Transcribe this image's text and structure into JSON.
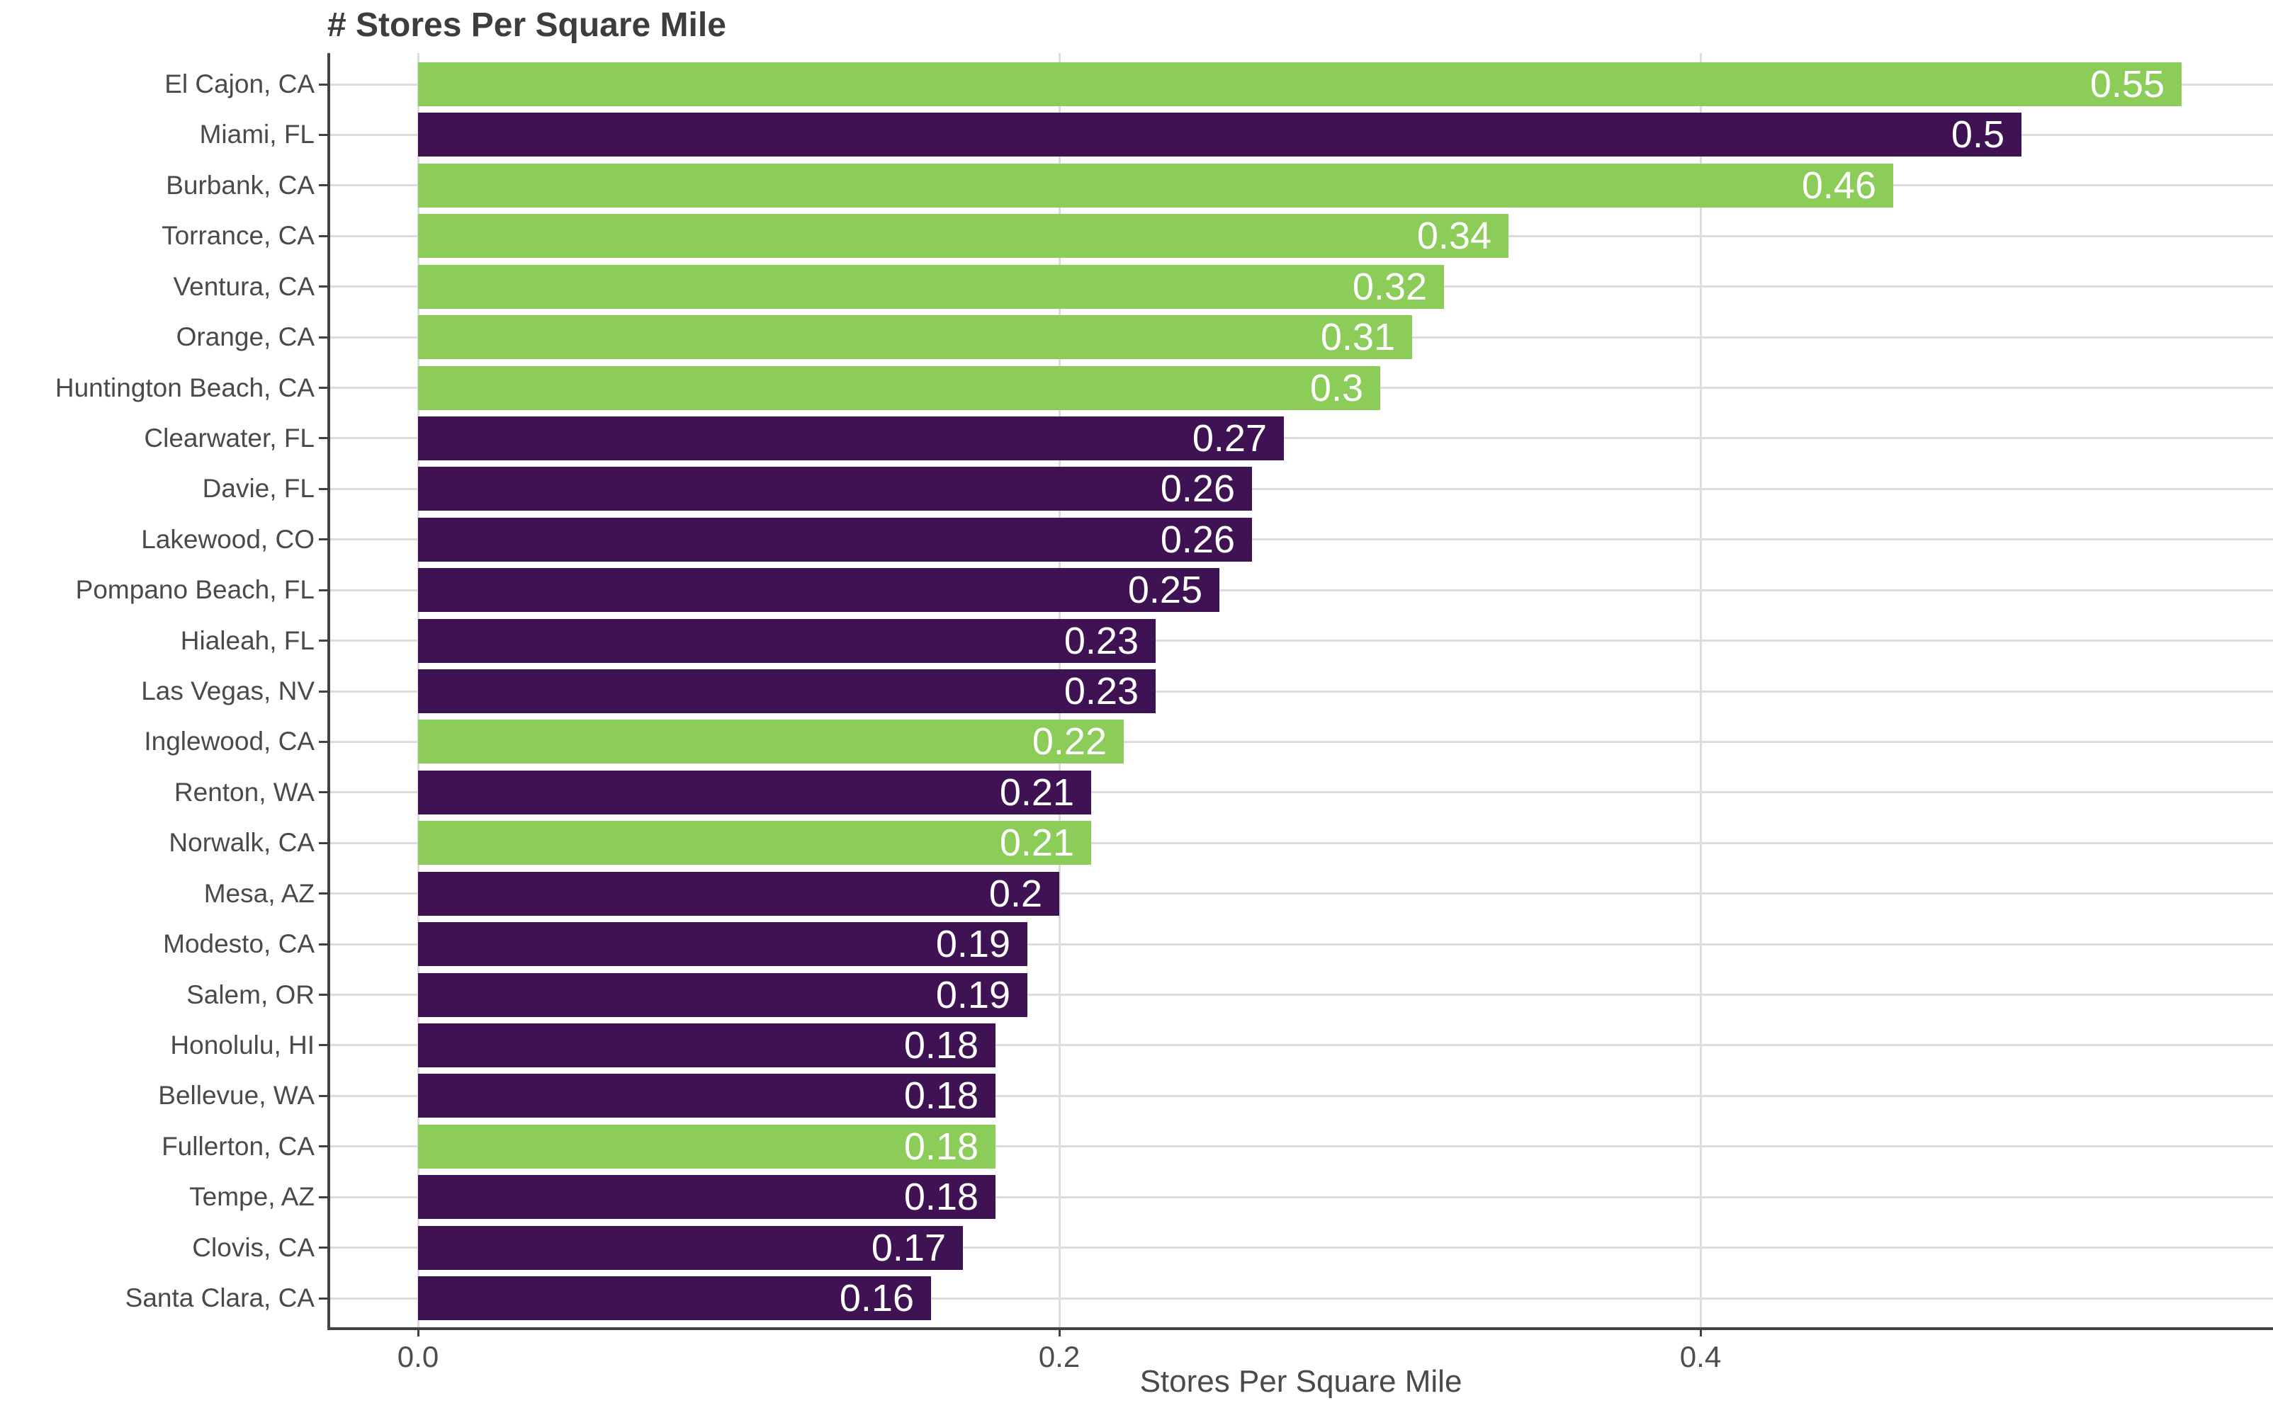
{
  "chart_data": {
    "type": "bar",
    "orientation": "horizontal",
    "title": "# Stores Per Square Mile",
    "xlabel": "Stores Per Square Mile",
    "ylabel": "",
    "legend_position": "none",
    "grid": "major vertical at x ticks, light horizontal line per category",
    "xlim": [
      -0.028,
      0.578
    ],
    "x_ticks": [
      {
        "value": 0.0,
        "label": "0.0"
      },
      {
        "value": 0.2,
        "label": "0.2"
      },
      {
        "value": 0.4,
        "label": "0.4"
      }
    ],
    "colors": {
      "green": "#8BCD58",
      "purple": "#3F1353",
      "value_label": "#ffffff",
      "gridline": "#dcdcdc",
      "axis_line": "#424242",
      "axis_text": "#4a4a4a",
      "title_text": "#3d3d3d"
    },
    "bars": [
      {
        "city": "El Cajon, CA",
        "value": 0.55,
        "label": "0.55",
        "color": "green"
      },
      {
        "city": "Miami, FL",
        "value": 0.5,
        "label": "0.5",
        "color": "purple"
      },
      {
        "city": "Burbank, CA",
        "value": 0.46,
        "label": "0.46",
        "color": "green"
      },
      {
        "city": "Torrance, CA",
        "value": 0.34,
        "label": "0.34",
        "color": "green"
      },
      {
        "city": "Ventura, CA",
        "value": 0.32,
        "label": "0.32",
        "color": "green"
      },
      {
        "city": "Orange, CA",
        "value": 0.31,
        "label": "0.31",
        "color": "green"
      },
      {
        "city": "Huntington Beach, CA",
        "value": 0.3,
        "label": "0.3",
        "color": "green"
      },
      {
        "city": "Clearwater, FL",
        "value": 0.27,
        "label": "0.27",
        "color": "purple"
      },
      {
        "city": "Davie, FL",
        "value": 0.26,
        "label": "0.26",
        "color": "purple"
      },
      {
        "city": "Lakewood, CO",
        "value": 0.26,
        "label": "0.26",
        "color": "purple"
      },
      {
        "city": "Pompano Beach, FL",
        "value": 0.25,
        "label": "0.25",
        "color": "purple"
      },
      {
        "city": "Hialeah, FL",
        "value": 0.23,
        "label": "0.23",
        "color": "purple"
      },
      {
        "city": "Las Vegas, NV",
        "value": 0.23,
        "label": "0.23",
        "color": "purple"
      },
      {
        "city": "Inglewood, CA",
        "value": 0.22,
        "label": "0.22",
        "color": "green"
      },
      {
        "city": "Renton, WA",
        "value": 0.21,
        "label": "0.21",
        "color": "purple"
      },
      {
        "city": "Norwalk, CA",
        "value": 0.21,
        "label": "0.21",
        "color": "green"
      },
      {
        "city": "Mesa, AZ",
        "value": 0.2,
        "label": "0.2",
        "color": "purple"
      },
      {
        "city": "Modesto, CA",
        "value": 0.19,
        "label": "0.19",
        "color": "purple"
      },
      {
        "city": "Salem, OR",
        "value": 0.19,
        "label": "0.19",
        "color": "purple"
      },
      {
        "city": "Honolulu, HI",
        "value": 0.18,
        "label": "0.18",
        "color": "purple"
      },
      {
        "city": "Bellevue, WA",
        "value": 0.18,
        "label": "0.18",
        "color": "purple"
      },
      {
        "city": "Fullerton, CA",
        "value": 0.18,
        "label": "0.18",
        "color": "green"
      },
      {
        "city": "Tempe, AZ",
        "value": 0.18,
        "label": "0.18",
        "color": "purple"
      },
      {
        "city": "Clovis, CA",
        "value": 0.17,
        "label": "0.17",
        "color": "purple"
      },
      {
        "city": "Santa Clara, CA",
        "value": 0.16,
        "label": "0.16",
        "color": "purple"
      }
    ]
  }
}
